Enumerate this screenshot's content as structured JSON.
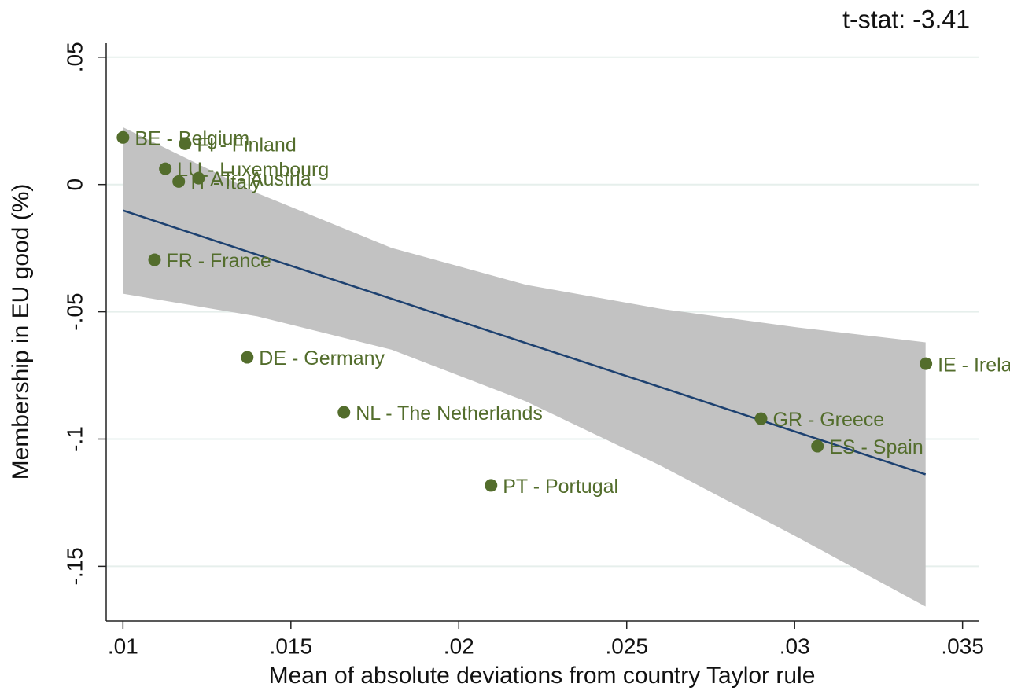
{
  "chart_data": {
    "type": "scatter",
    "title": "t-stat: -3.41",
    "xlabel": "Mean of absolute deviations from country Taylor rule",
    "ylabel": "Membership in EU good (%)",
    "xlim": [
      0.0095,
      0.0355
    ],
    "ylim": [
      -0.1715,
      0.0555
    ],
    "xticks": [
      {
        "value": 0.01,
        "label": ".01"
      },
      {
        "value": 0.015,
        "label": ".015"
      },
      {
        "value": 0.02,
        "label": ".02"
      },
      {
        "value": 0.025,
        "label": ".025"
      },
      {
        "value": 0.03,
        "label": ".03"
      },
      {
        "value": 0.035,
        "label": ".035"
      }
    ],
    "yticks": [
      {
        "value": 0.05,
        "label": ".05"
      },
      0,
      {
        "value": -0.05,
        "label": "-.05"
      },
      {
        "value": -0.1,
        "label": "-.1"
      },
      {
        "value": -0.15,
        "label": "-.15"
      }
    ],
    "grid": true,
    "points": {
      "color": "#536d2c",
      "labels": [
        "BE - Belgium",
        "FI - Finland",
        "LU - Luxembourg",
        "IT - Italy",
        "AT - Austria",
        "FR - France",
        "DE - Germany",
        "NL - The Netherlands",
        "PT - Portugal",
        "GR - Greece",
        "ES - Spain",
        "IE - Ireland"
      ],
      "x": [
        0.01,
        0.01185,
        0.01126,
        0.01166,
        0.01225,
        0.01094,
        0.0137,
        0.01658,
        0.02096,
        0.029,
        0.03068,
        0.03391
      ],
      "y": [
        0.0185,
        0.016,
        0.0062,
        0.0012,
        0.0025,
        -0.0296,
        -0.0679,
        -0.0895,
        -0.1182,
        -0.092,
        -0.1028,
        -0.0704
      ]
    },
    "fit": {
      "color": "#1d4170",
      "band_color": "#c2c2c2",
      "x": [
        0.01,
        0.014,
        0.018,
        0.022,
        0.026,
        0.03,
        0.0339
      ],
      "y": [
        -0.0102,
        -0.0276,
        -0.0449,
        -0.0623,
        -0.0796,
        -0.097,
        -0.1139
      ],
      "lower": [
        -0.0429,
        -0.0518,
        -0.0649,
        -0.0852,
        -0.1104,
        -0.138,
        -0.1658
      ],
      "upper": [
        0.0225,
        -0.0034,
        -0.0249,
        -0.0394,
        -0.0488,
        -0.056,
        -0.062
      ]
    }
  }
}
